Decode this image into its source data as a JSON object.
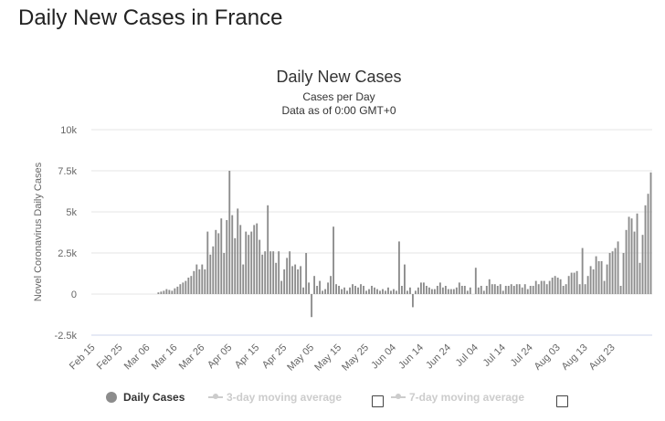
{
  "page": {
    "heading": "Daily New Cases in France"
  },
  "colors": {
    "bar": "#8c8c8c",
    "grid": "#e6e6e6",
    "axis": "#ccd6eb",
    "text": "#666666"
  },
  "chart_data": {
    "type": "bar",
    "title": "Daily New Cases",
    "subtitle_lines": [
      "Cases per Day",
      "Data as of 0:00 GMT+0"
    ],
    "ylabel": "Novel Coronavirus Daily Cases",
    "xlabel": "",
    "ylim": [
      -2500,
      10000
    ],
    "yticks": [
      -2500,
      0,
      2500,
      5000,
      7500,
      10000
    ],
    "ytick_labels": [
      "-2.5k",
      "0",
      "2.5k",
      "5k",
      "7.5k",
      "10k"
    ],
    "grid": true,
    "start_date": "2020-02-15",
    "xtick_labels": [
      "Feb 15",
      "Feb 25",
      "Mar 06",
      "Mar 16",
      "Mar 26",
      "Apr 05",
      "Apr 15",
      "Apr 25",
      "May 05",
      "May 15",
      "May 25",
      "Jun 04",
      "Jun 14",
      "Jun 24",
      "Jul 04",
      "Jul 14",
      "Jul 24",
      "Aug 03",
      "Aug 13",
      "Aug 23"
    ],
    "series": [
      {
        "name": "Daily Cases",
        "values": [
          0,
          0,
          0,
          0,
          0,
          0,
          0,
          0,
          0,
          0,
          0,
          0,
          0,
          0,
          0,
          0,
          0,
          0,
          0,
          0,
          0,
          0,
          0,
          0,
          100,
          150,
          200,
          300,
          250,
          200,
          350,
          450,
          600,
          700,
          800,
          1000,
          1100,
          1400,
          1800,
          1500,
          1800,
          1500,
          3800,
          2400,
          2900,
          3900,
          3700,
          4600,
          2500,
          4500,
          7500,
          4800,
          3400,
          5200,
          4200,
          1800,
          3800,
          3600,
          3800,
          4200,
          4300,
          3300,
          2400,
          2600,
          5400,
          2600,
          2600,
          1900,
          2600,
          800,
          1500,
          2200,
          2600,
          1700,
          1800,
          1500,
          1700,
          400,
          2500,
          700,
          -1400,
          1100,
          500,
          800,
          200,
          300,
          700,
          1100,
          4100,
          600,
          500,
          300,
          400,
          200,
          400,
          600,
          500,
          400,
          600,
          500,
          200,
          300,
          500,
          400,
          300,
          200,
          300,
          200,
          400,
          200,
          300,
          200,
          3200,
          500,
          1800,
          200,
          400,
          -800,
          200,
          400,
          700,
          700,
          500,
          400,
          300,
          300,
          500,
          700,
          400,
          500,
          300,
          300,
          300,
          400,
          700,
          500,
          500,
          200,
          400,
          0,
          1600,
          400,
          500,
          200,
          500,
          900,
          600,
          600,
          500,
          600,
          200,
          500,
          500,
          600,
          500,
          600,
          600,
          400,
          600,
          300,
          500,
          500,
          800,
          600,
          800,
          800,
          600,
          800,
          1000,
          1100,
          1000,
          900,
          500,
          600,
          1100,
          1300,
          1300,
          1400,
          600,
          2800,
          600,
          1100,
          1700,
          1500,
          2300,
          2000,
          2000,
          800,
          1800,
          2500,
          2600,
          2800,
          3200,
          500,
          2500,
          3900,
          4700,
          4600,
          3800,
          4900,
          1900,
          3600,
          5400,
          6100,
          7400
        ]
      }
    ],
    "legend": {
      "position": "bottom",
      "items": [
        {
          "label": "Daily Cases",
          "active": true
        },
        {
          "label": "3-day moving average",
          "active": false
        },
        {
          "label": "7-day moving average",
          "active": false
        }
      ]
    }
  }
}
